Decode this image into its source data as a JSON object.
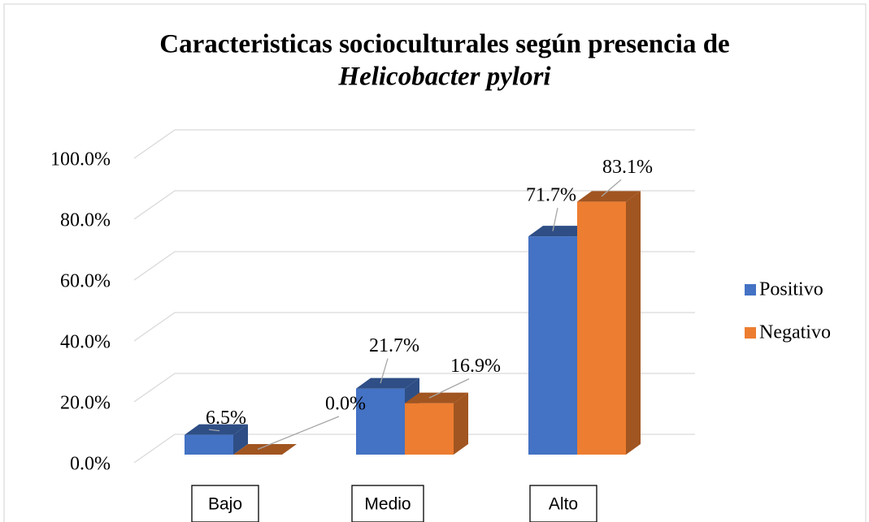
{
  "chart_data": {
    "type": "bar3d",
    "title": [
      "Caracteristicas socioculturales según presencia de",
      "Helicobacter pylori"
    ],
    "categories": [
      "Bajo",
      "Medio",
      "Alto"
    ],
    "series": [
      {
        "name": "Positivo",
        "color": "#4472c4",
        "values": [
          6.5,
          21.7,
          71.7
        ],
        "value_labels": [
          "6.5%",
          "21.7%",
          "71.7%"
        ]
      },
      {
        "name": "Negativo",
        "color": "#ed7d31",
        "values": [
          0.0,
          16.9,
          83.1
        ],
        "value_labels": [
          "0.0%",
          "16.9%",
          "83.1%"
        ]
      }
    ],
    "ylim": [
      0,
      100
    ],
    "yticks": [
      {
        "value": 0,
        "label": "0.0%"
      },
      {
        "value": 20,
        "label": "20.0%"
      },
      {
        "value": 40,
        "label": "40.0%"
      },
      {
        "value": 60,
        "label": "60.0%"
      },
      {
        "value": 80,
        "label": "80.0%"
      },
      {
        "value": 100,
        "label": "100.0%"
      }
    ],
    "grid": true,
    "legend": "right"
  }
}
